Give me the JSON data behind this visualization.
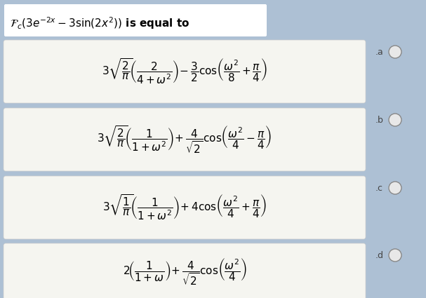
{
  "background_color": "#adc0d4",
  "title_math": "$\\mathcal{F}_c(3e^{-2x}-3\\sin(2x^2))$",
  "title_text": " is equal to",
  "option_a": "$3\\sqrt{\\dfrac{2}{\\pi}}\\!\\left(\\dfrac{2}{4+\\omega^2}\\right)\\!-\\dfrac{3}{2}\\cos\\!\\left(\\dfrac{\\omega^2}{8}+\\dfrac{\\pi}{4}\\right)$",
  "option_b": "$3\\sqrt{\\dfrac{2}{\\pi}}\\!\\left(\\dfrac{1}{1+\\omega^2}\\right)\\!+\\dfrac{4}{\\sqrt{2}}\\cos\\!\\left(\\dfrac{\\omega^2}{4}-\\dfrac{\\pi}{4}\\right)$",
  "option_c": "$3\\sqrt{\\dfrac{1}{\\pi}}\\!\\left(\\dfrac{1}{1+\\omega^2}\\right)\\!+4\\cos\\!\\left(\\dfrac{\\omega^2}{4}+\\dfrac{\\pi}{4}\\right)$",
  "option_d": "$2\\!\\left(\\dfrac{1}{1+\\omega}\\right)\\!+\\dfrac{4}{\\sqrt{2}}\\cos\\!\\left(\\dfrac{\\omega^2}{4}\\right)$",
  "labels": [
    ".a",
    ".b",
    ".c",
    ".d"
  ],
  "box_color": "#f5f5f0",
  "text_color": "#000000",
  "label_color": "#444444",
  "title_fontsize": 11,
  "option_fontsize": 11
}
